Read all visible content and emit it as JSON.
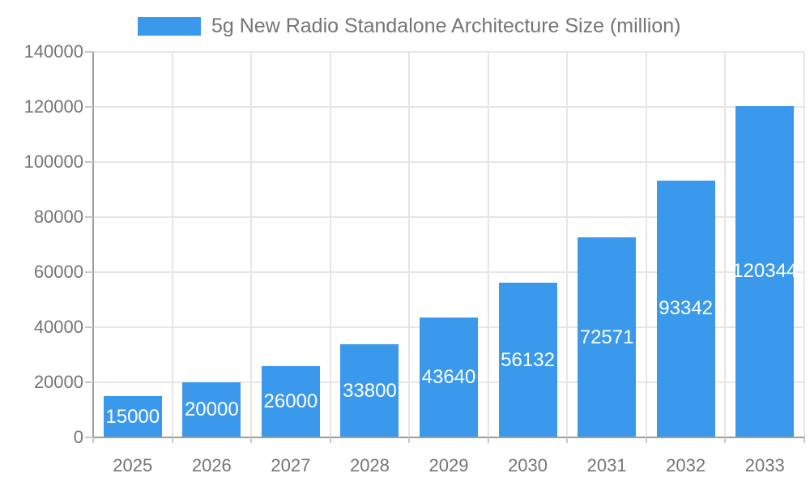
{
  "chart_data": {
    "type": "bar",
    "title": "5g New Radio Standalone Architecture Size (million)",
    "categories": [
      "2025",
      "2026",
      "2027",
      "2028",
      "2029",
      "2030",
      "2031",
      "2032",
      "2033"
    ],
    "series": [
      {
        "name": "5g New Radio Standalone Architecture Size (million)",
        "values": [
          15000,
          20000,
          26000,
          33800,
          43640,
          56132,
          72571,
          93342,
          120344
        ]
      }
    ],
    "bar_labels": [
      "15000",
      "20000",
      "26000",
      "33800",
      "43640",
      "56132",
      "72571",
      "93342",
      "120344"
    ],
    "xlabel": "",
    "ylabel": "",
    "ylim": [
      0,
      140000
    ],
    "ytick_step": 20000,
    "ytick_labels": [
      "0",
      "20000",
      "40000",
      "60000",
      "80000",
      "100000",
      "120000",
      "140000"
    ],
    "grid": true,
    "legend_position": "top",
    "colors": {
      "bar": "#3b99ec",
      "bar_value_text": "#ffffff",
      "axis_text": "#757575",
      "grid_line": "#e6e6e6",
      "axis_line": "#9e9e9e",
      "tick_mark": "#c9c9c9",
      "background": "#ffffff"
    }
  }
}
